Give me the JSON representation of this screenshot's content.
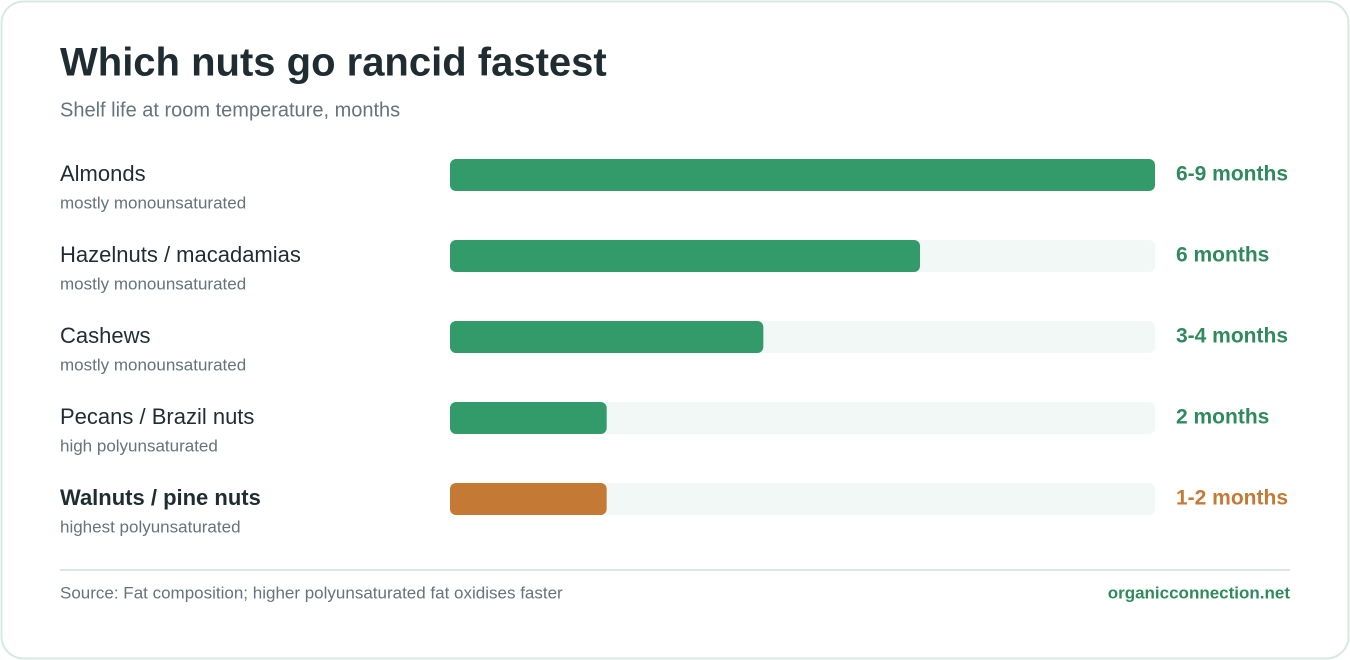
{
  "chart_data": {
    "type": "bar",
    "orientation": "horizontal",
    "title": "Which nuts go rancid fastest",
    "subtitle": "Shelf life at room temperature, months",
    "categories": [
      "Almonds",
      "Hazelnuts / macadamias",
      "Cashews",
      "Pecans / Brazil nuts",
      "Walnuts / pine nuts"
    ],
    "descriptions": [
      "mostly monounsaturated",
      "mostly monounsaturated",
      "mostly monounsaturated",
      "high polyunsaturated",
      "highest polyunsaturated"
    ],
    "values": [
      9,
      6,
      4,
      2,
      2
    ],
    "value_labels": [
      "6-9 months",
      "6 months",
      "3-4 months",
      "2 months",
      "1-2 months"
    ],
    "colors": [
      "#339a6a",
      "#339a6a",
      "#339a6a",
      "#339a6a",
      "#c47a35"
    ],
    "emphasis": [
      false,
      false,
      false,
      false,
      true
    ],
    "xlim": [
      0,
      9
    ],
    "source": "Source: Fat composition; higher polyunsaturated fat oxidises faster",
    "credit": "organicconnection.net"
  }
}
